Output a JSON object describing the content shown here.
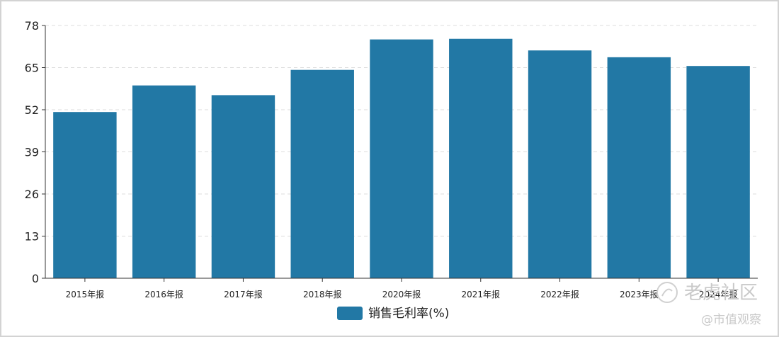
{
  "chart_data": {
    "type": "bar",
    "categories": [
      "2015年报",
      "2016年报",
      "2017年报",
      "2018年报",
      "2020年报",
      "2021年报",
      "2022年报",
      "2023年报",
      "2024年报"
    ],
    "series": [
      {
        "name": "销售毛利率(%)",
        "values": [
          51.3,
          59.5,
          56.5,
          64.3,
          73.7,
          73.9,
          70.3,
          68.2,
          65.5
        ]
      }
    ],
    "ylim": [
      0,
      78
    ],
    "yticks": [
      0,
      13,
      26,
      39,
      52,
      65,
      78
    ],
    "grid": true,
    "legend_position": "bottom-center",
    "colors": {
      "bar": "#2278a5",
      "grid": "#dcdcdc",
      "axis": "#333333"
    }
  },
  "watermark": {
    "brand": "老虎社区",
    "handle": "@市值观察"
  }
}
